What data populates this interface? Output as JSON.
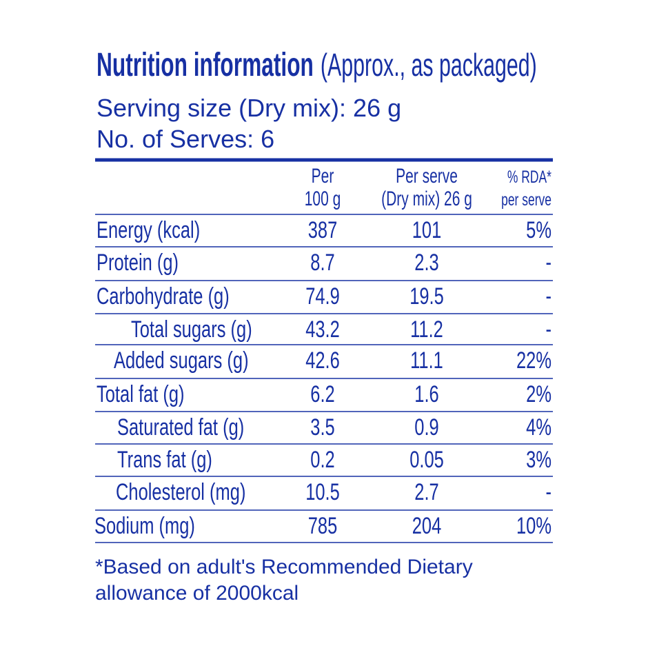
{
  "header": {
    "title": "Nutrition information",
    "subtitle": "(Approx., as packaged)",
    "serving_size": "Serving size (Dry mix): 26 g",
    "serves": "No. of Serves: 6"
  },
  "table": {
    "columns": [
      [
        "Per",
        "100 g"
      ],
      [
        "Per serve",
        "(Dry mix) 26 g"
      ],
      [
        "% RDA*",
        "per serve"
      ]
    ],
    "rows": [
      [
        "Energy (kcal)",
        "387",
        "101",
        "5%"
      ],
      [
        "Protein (g)",
        "8.7",
        "2.3",
        "-"
      ],
      [
        "Carbohydrate (g)",
        "74.9",
        "19.5",
        "-"
      ],
      [
        "Total sugars (g)",
        "43.2",
        "11.2",
        "-"
      ],
      [
        "Added sugars (g)",
        "42.6",
        "11.1",
        "22%"
      ],
      [
        "Total fat (g)",
        "6.2",
        "1.6",
        "2%"
      ],
      [
        "Saturated fat (g)",
        "3.5",
        "0.9",
        "4%"
      ],
      [
        "Trans fat (g)",
        "0.2",
        "0.05",
        "3%"
      ],
      [
        "Cholesterol (mg)",
        "10.5",
        "2.7",
        "-"
      ],
      [
        "Sodium (mg)",
        "785",
        "204",
        "10%"
      ]
    ]
  },
  "footnote": [
    "*Based on adult's Recommended Dietary",
    "allowance of 2000kcal"
  ]
}
